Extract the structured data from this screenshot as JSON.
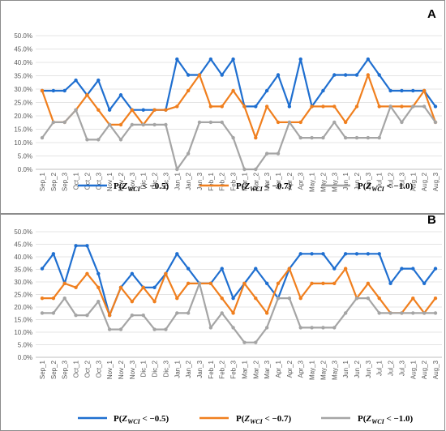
{
  "chart_data": [
    {
      "type": "line",
      "panel_label": "A",
      "categories": [
        "Sep_1",
        "Sep_2",
        "Sep_3",
        "Oct_1",
        "Oct_2",
        "Oct_3",
        "Nov_1",
        "Nov_2",
        "Nov_3",
        "Dic_1",
        "Dic_2",
        "Dic_3",
        "Jan_1",
        "Jan_2",
        "Jan_3",
        "Feb_1",
        "Feb_2",
        "Feb_3",
        "Mar_1",
        "Mar_2",
        "Mar_3",
        "Apr_1",
        "Apr_2",
        "Apr_3",
        "May_1",
        "May_2",
        "May_3",
        "Jun_1",
        "Jun_2",
        "Jun_3",
        "Jul_1",
        "Jul_2",
        "Jul_3",
        "Aug_1",
        "Aug_2",
        "Aug_3"
      ],
      "ylim": [
        0,
        50
      ],
      "yticks": [
        "0.0%",
        "5.0%",
        "10.0%",
        "15.0%",
        "20.0%",
        "25.0%",
        "30.0%",
        "35.0%",
        "40.0%",
        "45.0%",
        "50.0%"
      ],
      "grid": true,
      "legend_position": "bottom",
      "series": [
        {
          "name": "P(Z_WCI < −0.5)",
          "color": "#1f6fd0",
          "values": [
            29.4,
            29.4,
            29.4,
            33.3,
            27.8,
            33.3,
            22.2,
            27.8,
            22.2,
            22.2,
            22.2,
            22.2,
            41.2,
            35.3,
            35.3,
            41.2,
            35.3,
            41.2,
            23.5,
            23.5,
            29.4,
            35.3,
            23.5,
            41.2,
            23.5,
            29.4,
            35.3,
            35.3,
            35.3,
            41.2,
            35.3,
            29.4,
            29.4,
            29.4,
            29.4,
            23.5
          ]
        },
        {
          "name": "P(Z_WCI < −0.7)",
          "color": "#f07f1e",
          "values": [
            29.4,
            17.6,
            17.6,
            22.2,
            27.8,
            22.2,
            16.7,
            16.7,
            22.2,
            16.7,
            22.2,
            22.2,
            23.5,
            29.4,
            35.3,
            23.5,
            23.5,
            29.4,
            23.5,
            11.8,
            23.5,
            17.6,
            17.6,
            17.6,
            23.5,
            23.5,
            23.5,
            17.6,
            23.5,
            35.3,
            23.5,
            23.5,
            23.5,
            23.5,
            29.4,
            17.6
          ]
        },
        {
          "name": "P(Z_WCI < −1.0)",
          "color": "#a5a5a5",
          "values": [
            11.8,
            17.6,
            17.6,
            22.2,
            11.1,
            11.1,
            16.7,
            11.1,
            16.7,
            16.7,
            16.7,
            16.7,
            0.0,
            5.9,
            17.6,
            17.6,
            17.6,
            11.8,
            0.0,
            0.0,
            5.9,
            5.9,
            17.6,
            11.8,
            11.8,
            11.8,
            17.6,
            11.8,
            11.8,
            11.8,
            11.8,
            23.5,
            17.6,
            23.5,
            23.5,
            17.6
          ]
        }
      ]
    },
    {
      "type": "line",
      "panel_label": "B",
      "categories": [
        "Sep_1",
        "Sep_2",
        "Sep_3",
        "Oct_1",
        "Oct_2",
        "Oct_3",
        "Nov_1",
        "Nov_2",
        "Nov_3",
        "Dic_1",
        "Dic_2",
        "Dic_3",
        "Jan_1",
        "Jan_2",
        "Jan_3",
        "Feb_1",
        "Feb_2",
        "Feb_3",
        "Mar_1",
        "Mar_2",
        "Mar_3",
        "Apr_1",
        "Apr_2",
        "Apr_3",
        "May_1",
        "May_2",
        "May_3",
        "Jun_1",
        "Jun_2",
        "Jun_3",
        "Jul_1",
        "Jul_2",
        "Jul_3",
        "Aug_1",
        "Aug_2",
        "Aug_3"
      ],
      "ylim": [
        0,
        50
      ],
      "yticks": [
        "0.0%",
        "5.0%",
        "10.0%",
        "15.0%",
        "20.0%",
        "25.0%",
        "30.0%",
        "35.0%",
        "40.0%",
        "45.0%",
        "50.0%"
      ],
      "grid": true,
      "legend_position": "bottom",
      "series": [
        {
          "name": "P(Z_WCI < −0.5)",
          "color": "#1f6fd0",
          "values": [
            35.3,
            41.2,
            29.4,
            44.4,
            44.4,
            33.3,
            16.7,
            27.8,
            33.3,
            27.8,
            27.8,
            33.3,
            41.2,
            35.3,
            29.4,
            29.4,
            35.3,
            23.5,
            29.4,
            35.3,
            29.4,
            23.5,
            35.3,
            41.2,
            41.2,
            41.2,
            35.3,
            41.2,
            41.2,
            41.2,
            41.2,
            29.4,
            35.3,
            35.3,
            29.4,
            35.3
          ]
        },
        {
          "name": "P(Z_WCI < −0.7)",
          "color": "#f07f1e",
          "values": [
            23.5,
            23.5,
            29.4,
            27.8,
            33.3,
            27.8,
            16.7,
            27.8,
            22.2,
            27.8,
            22.2,
            33.3,
            23.5,
            29.4,
            29.4,
            29.4,
            23.5,
            17.6,
            29.4,
            23.5,
            17.6,
            29.4,
            35.3,
            23.5,
            29.4,
            29.4,
            29.4,
            35.3,
            23.5,
            29.4,
            23.5,
            17.6,
            17.6,
            23.5,
            17.6,
            23.5
          ]
        },
        {
          "name": "P(Z_WCI < −1.0)",
          "color": "#a5a5a5",
          "values": [
            17.6,
            17.6,
            23.5,
            16.7,
            16.7,
            22.2,
            11.1,
            11.1,
            16.7,
            16.7,
            11.1,
            11.1,
            17.6,
            17.6,
            29.4,
            11.8,
            17.6,
            11.8,
            5.9,
            5.9,
            11.8,
            23.5,
            23.5,
            11.8,
            11.8,
            11.8,
            11.8,
            17.6,
            23.5,
            23.5,
            17.6,
            17.6,
            17.6,
            17.6,
            17.6,
            17.6
          ]
        }
      ]
    }
  ]
}
